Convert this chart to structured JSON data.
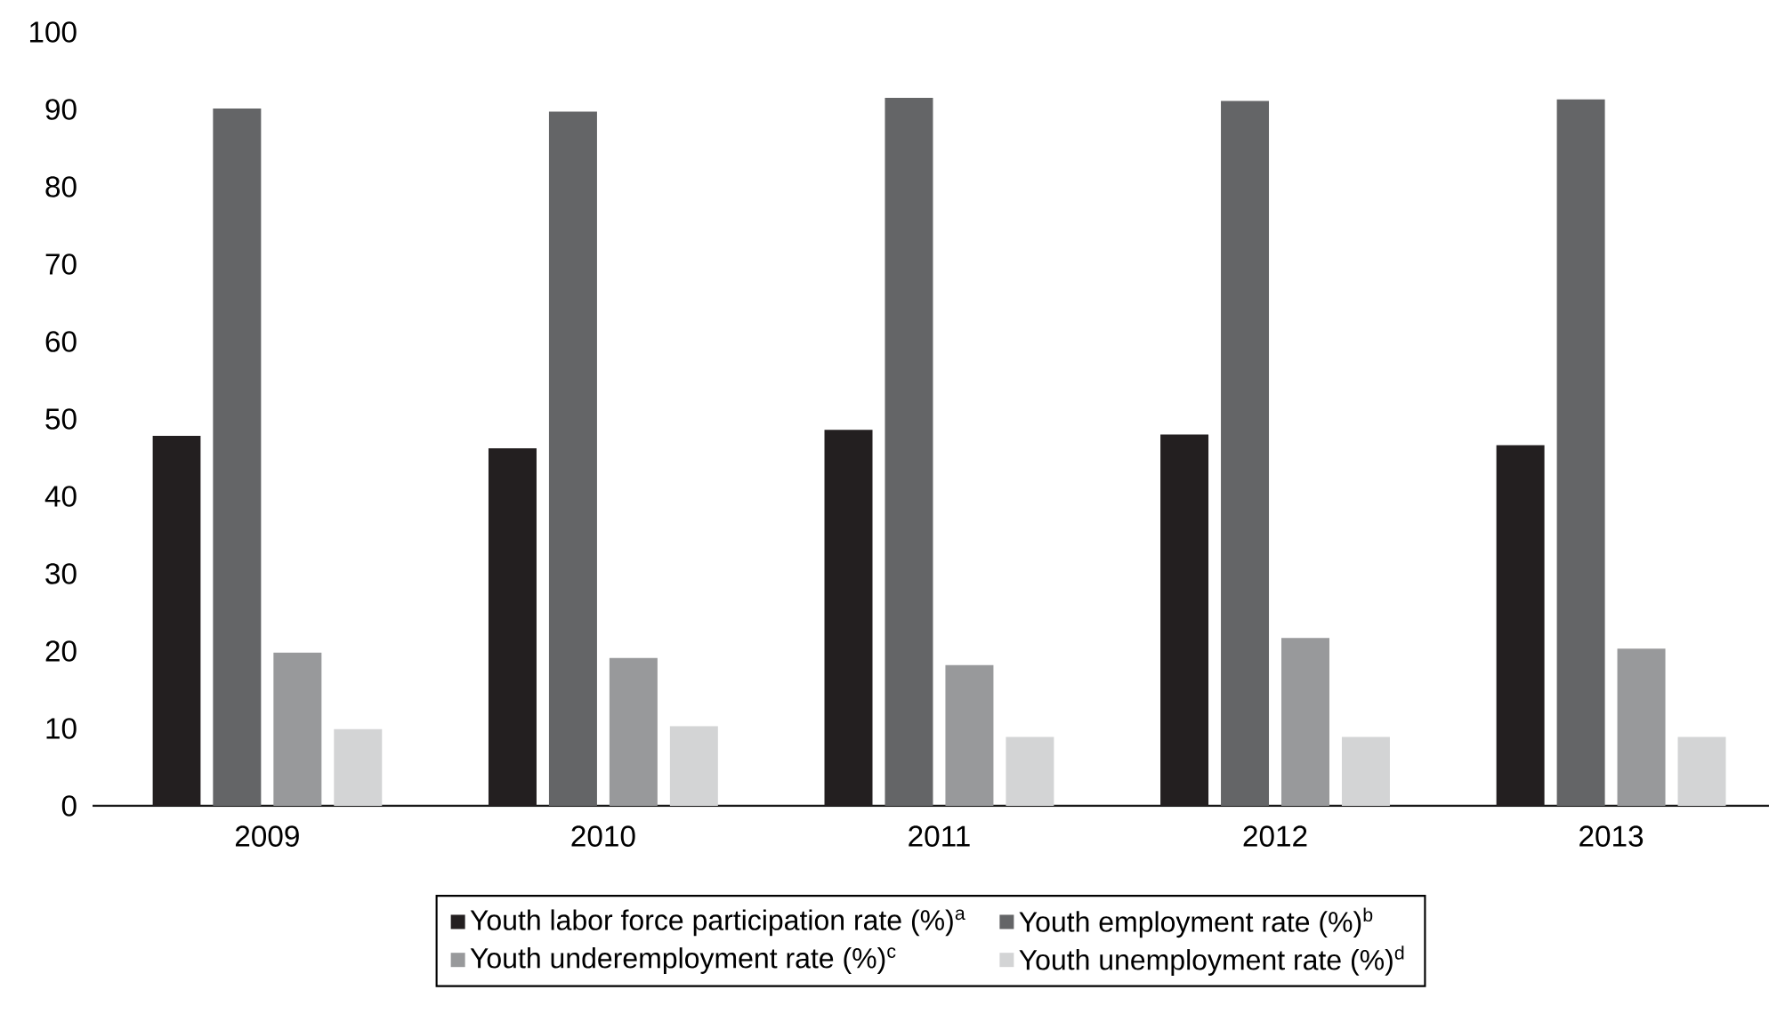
{
  "chart_data": {
    "type": "bar",
    "categories": [
      "2009",
      "2010",
      "2011",
      "2012",
      "2013"
    ],
    "series": [
      {
        "name": "Youth labor force participation rate (%)$^{a}$",
        "color": "#231f20",
        "values": [
          47.8,
          46.2,
          48.6,
          48.0,
          46.6
        ]
      },
      {
        "name": "Youth employment rate (%)$^{b}$",
        "color": "#646567",
        "values": [
          90.1,
          89.7,
          91.5,
          91.1,
          91.3
        ]
      },
      {
        "name": "Youth underemployment rate (%)$^{c}$",
        "color": "#98999b",
        "values": [
          19.8,
          19.1,
          18.2,
          21.7,
          20.3
        ]
      },
      {
        "name": "Youth unemployment rate (%)$^{d}$",
        "color": "#d3d4d5",
        "values": [
          9.9,
          10.3,
          8.9,
          8.9,
          8.9
        ]
      }
    ],
    "ylim": [
      0,
      100
    ],
    "yticks": [
      0,
      10,
      20,
      30,
      40,
      50,
      60,
      70,
      80,
      90,
      100
    ],
    "grid": false,
    "legend": "bottom"
  }
}
